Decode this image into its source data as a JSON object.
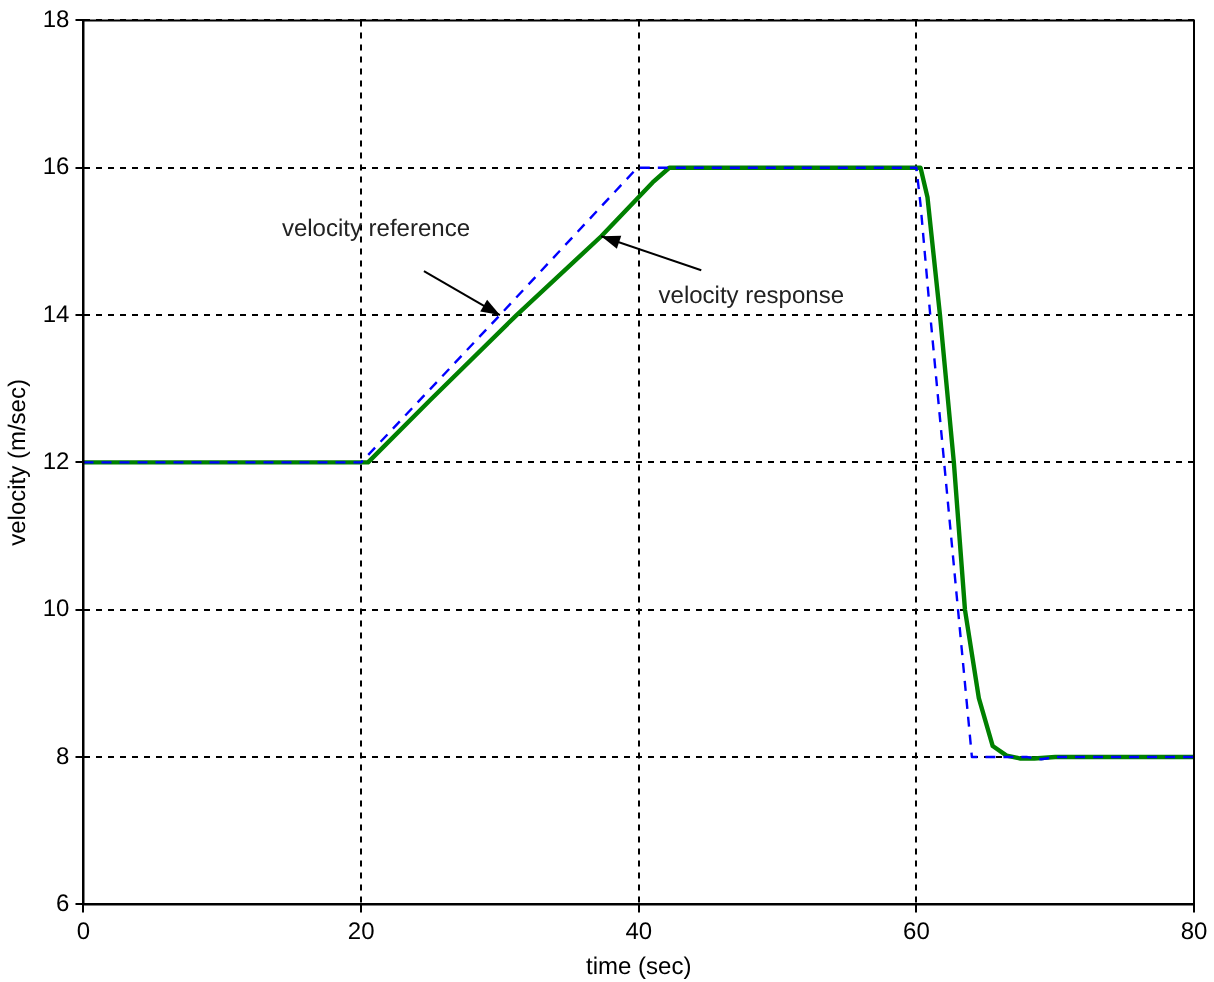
{
  "chart_data": {
    "type": "line",
    "xlabel": "time (sec)",
    "ylabel": "velocity (m/sec)",
    "xlim": [
      0,
      80
    ],
    "xticks": [
      0,
      20,
      40,
      60,
      80
    ],
    "ylim": [
      6,
      18
    ],
    "yticks": [
      6,
      8,
      10,
      12,
      14,
      16,
      18
    ],
    "grid": true,
    "legend": false,
    "marker": "none",
    "series": [
      {
        "color": "#0000ff",
        "line_style": "dashed",
        "x": [
          0,
          20,
          30,
          39.9,
          42,
          60,
          60.3,
          61,
          62,
          63,
          64,
          66,
          68,
          69,
          70,
          80
        ],
        "values": [
          12,
          12,
          14,
          16,
          16,
          16,
          15.5,
          14,
          12,
          10,
          8,
          8,
          8,
          7.97,
          8,
          8
        ]
      },
      {
        "color": "#008000",
        "line_style": "solid",
        "x": [
          0,
          20.5,
          25,
          31.2,
          37.3,
          41,
          42.2,
          43.5,
          60,
          60.3,
          60.8,
          61.7,
          62.7,
          63.5,
          64.5,
          65.5,
          66.5,
          67.5,
          68.5,
          70,
          80
        ],
        "values": [
          12,
          12,
          12.85,
          14,
          15.07,
          15.8,
          16,
          16,
          16,
          16,
          15.6,
          14,
          12,
          10,
          8.8,
          8.15,
          8.02,
          7.98,
          7.98,
          8,
          8
        ]
      }
    ],
    "annotations": [
      {
        "text": "velocity reference",
        "x": 30,
        "y": 14
      },
      {
        "text": "velocity response",
        "x": 37.3,
        "y": 15.07
      }
    ]
  }
}
